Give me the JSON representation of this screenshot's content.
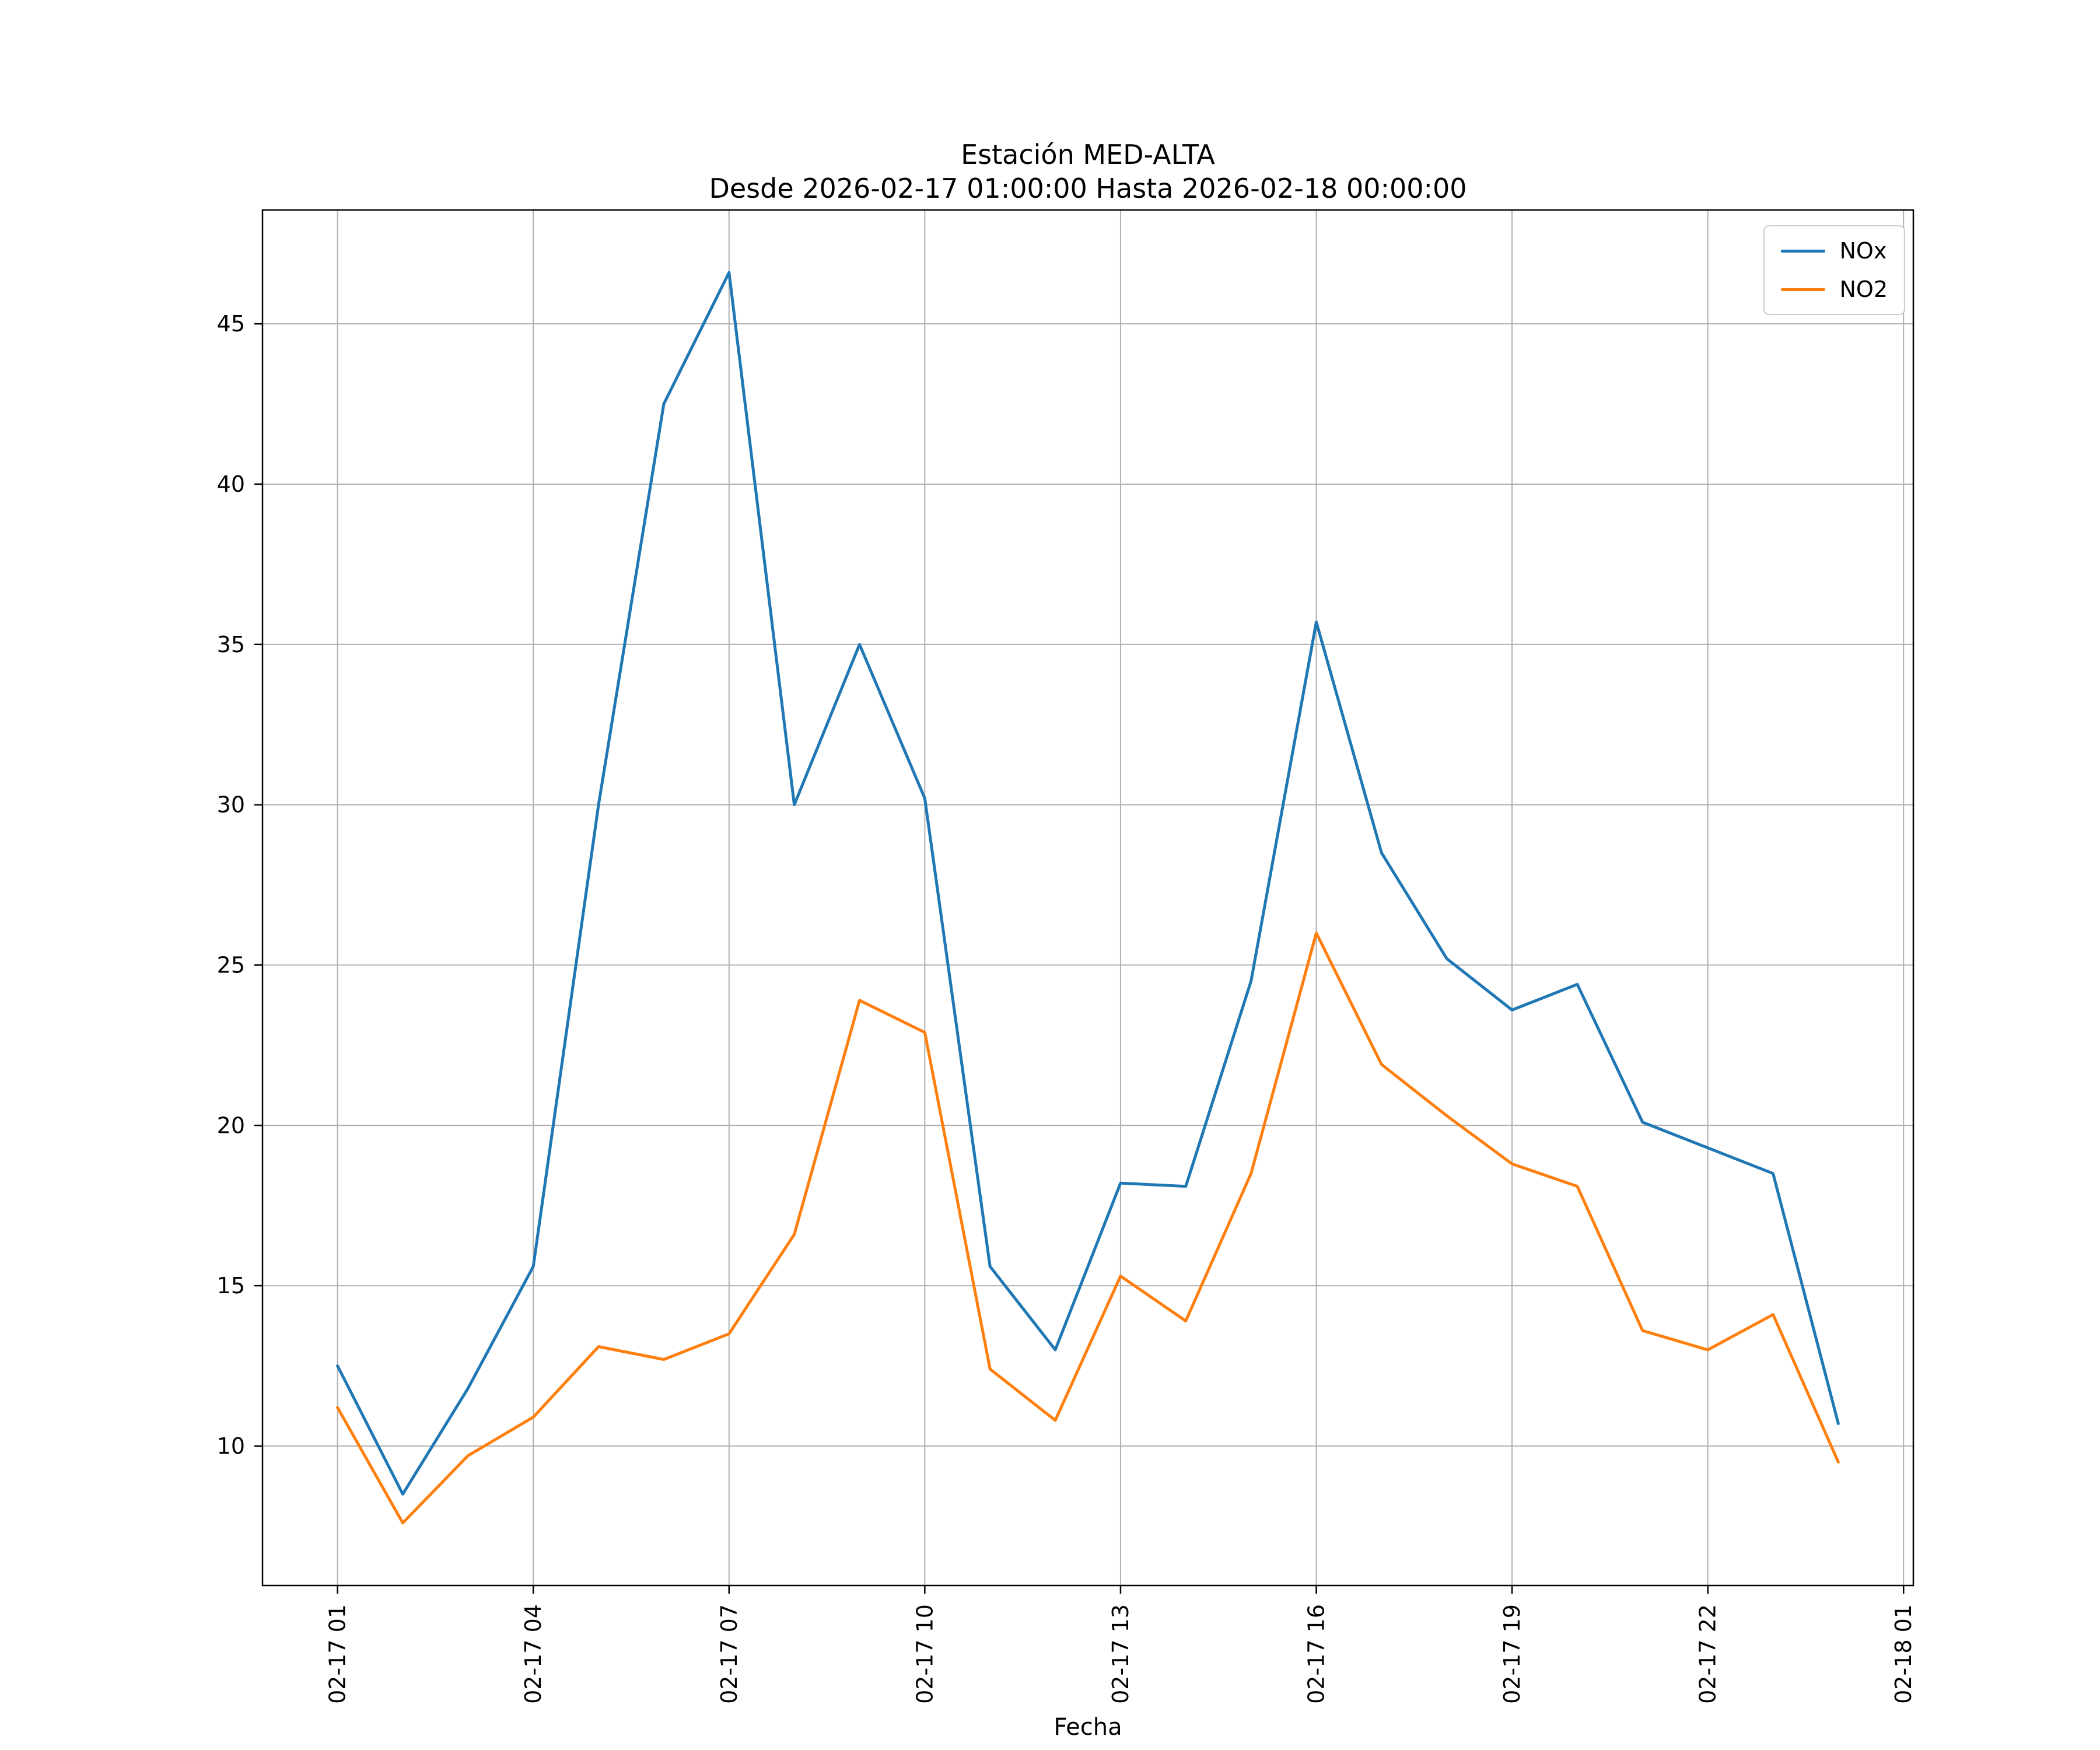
{
  "title": {
    "line1": "Estación MED-ALTA",
    "line2": "Desde 2026-02-17 01:00:00 Hasta 2026-02-18 00:00:00"
  },
  "chart_data": {
    "type": "line",
    "title": "Estación MED-ALTA",
    "subtitle": "Desde 2026-02-17 01:00:00 Hasta 2026-02-18 00:00:00",
    "xlabel": "Fecha",
    "ylabel": "",
    "grid": true,
    "grid_color": "#b0b0b0",
    "legend_position": "upper right",
    "xlim": [
      -0.15,
      25.15
    ],
    "ylim": [
      5.65,
      48.55
    ],
    "y_ticks": [
      10,
      15,
      20,
      25,
      30,
      35,
      40,
      45
    ],
    "x_tick_positions": [
      1,
      4,
      7,
      10,
      13,
      16,
      19,
      22,
      25
    ],
    "x_tick_labels": [
      "02-17 01",
      "02-17 04",
      "02-17 07",
      "02-17 10",
      "02-17 13",
      "02-17 16",
      "02-17 19",
      "02-17 22",
      "02-18 01"
    ],
    "x": [
      1,
      2,
      3,
      4,
      5,
      6,
      7,
      8,
      9,
      10,
      11,
      12,
      13,
      14,
      15,
      16,
      17,
      18,
      19,
      20,
      21,
      22,
      23,
      24
    ],
    "x_hours": [
      "01:00",
      "02:00",
      "03:00",
      "04:00",
      "05:00",
      "06:00",
      "07:00",
      "08:00",
      "09:00",
      "10:00",
      "11:00",
      "12:00",
      "13:00",
      "14:00",
      "15:00",
      "16:00",
      "17:00",
      "18:00",
      "19:00",
      "20:00",
      "21:00",
      "22:00",
      "23:00",
      "00:00"
    ],
    "series": [
      {
        "name": "NOx",
        "color": "#1f77b4",
        "values": [
          12.5,
          8.5,
          11.8,
          15.6,
          30.0,
          42.5,
          46.6,
          30.0,
          35.0,
          30.2,
          15.6,
          13.0,
          18.2,
          18.1,
          24.5,
          35.7,
          28.5,
          25.2,
          23.6,
          24.4,
          20.1,
          19.3,
          18.5,
          10.7
        ]
      },
      {
        "name": "NO2",
        "color": "#ff7f0e",
        "values": [
          11.2,
          7.6,
          9.7,
          10.9,
          13.1,
          12.7,
          13.5,
          16.6,
          23.9,
          22.9,
          12.4,
          10.8,
          15.3,
          13.9,
          18.5,
          26.0,
          21.9,
          20.3,
          18.8,
          18.1,
          13.6,
          13.0,
          14.1,
          9.5
        ]
      }
    ]
  }
}
